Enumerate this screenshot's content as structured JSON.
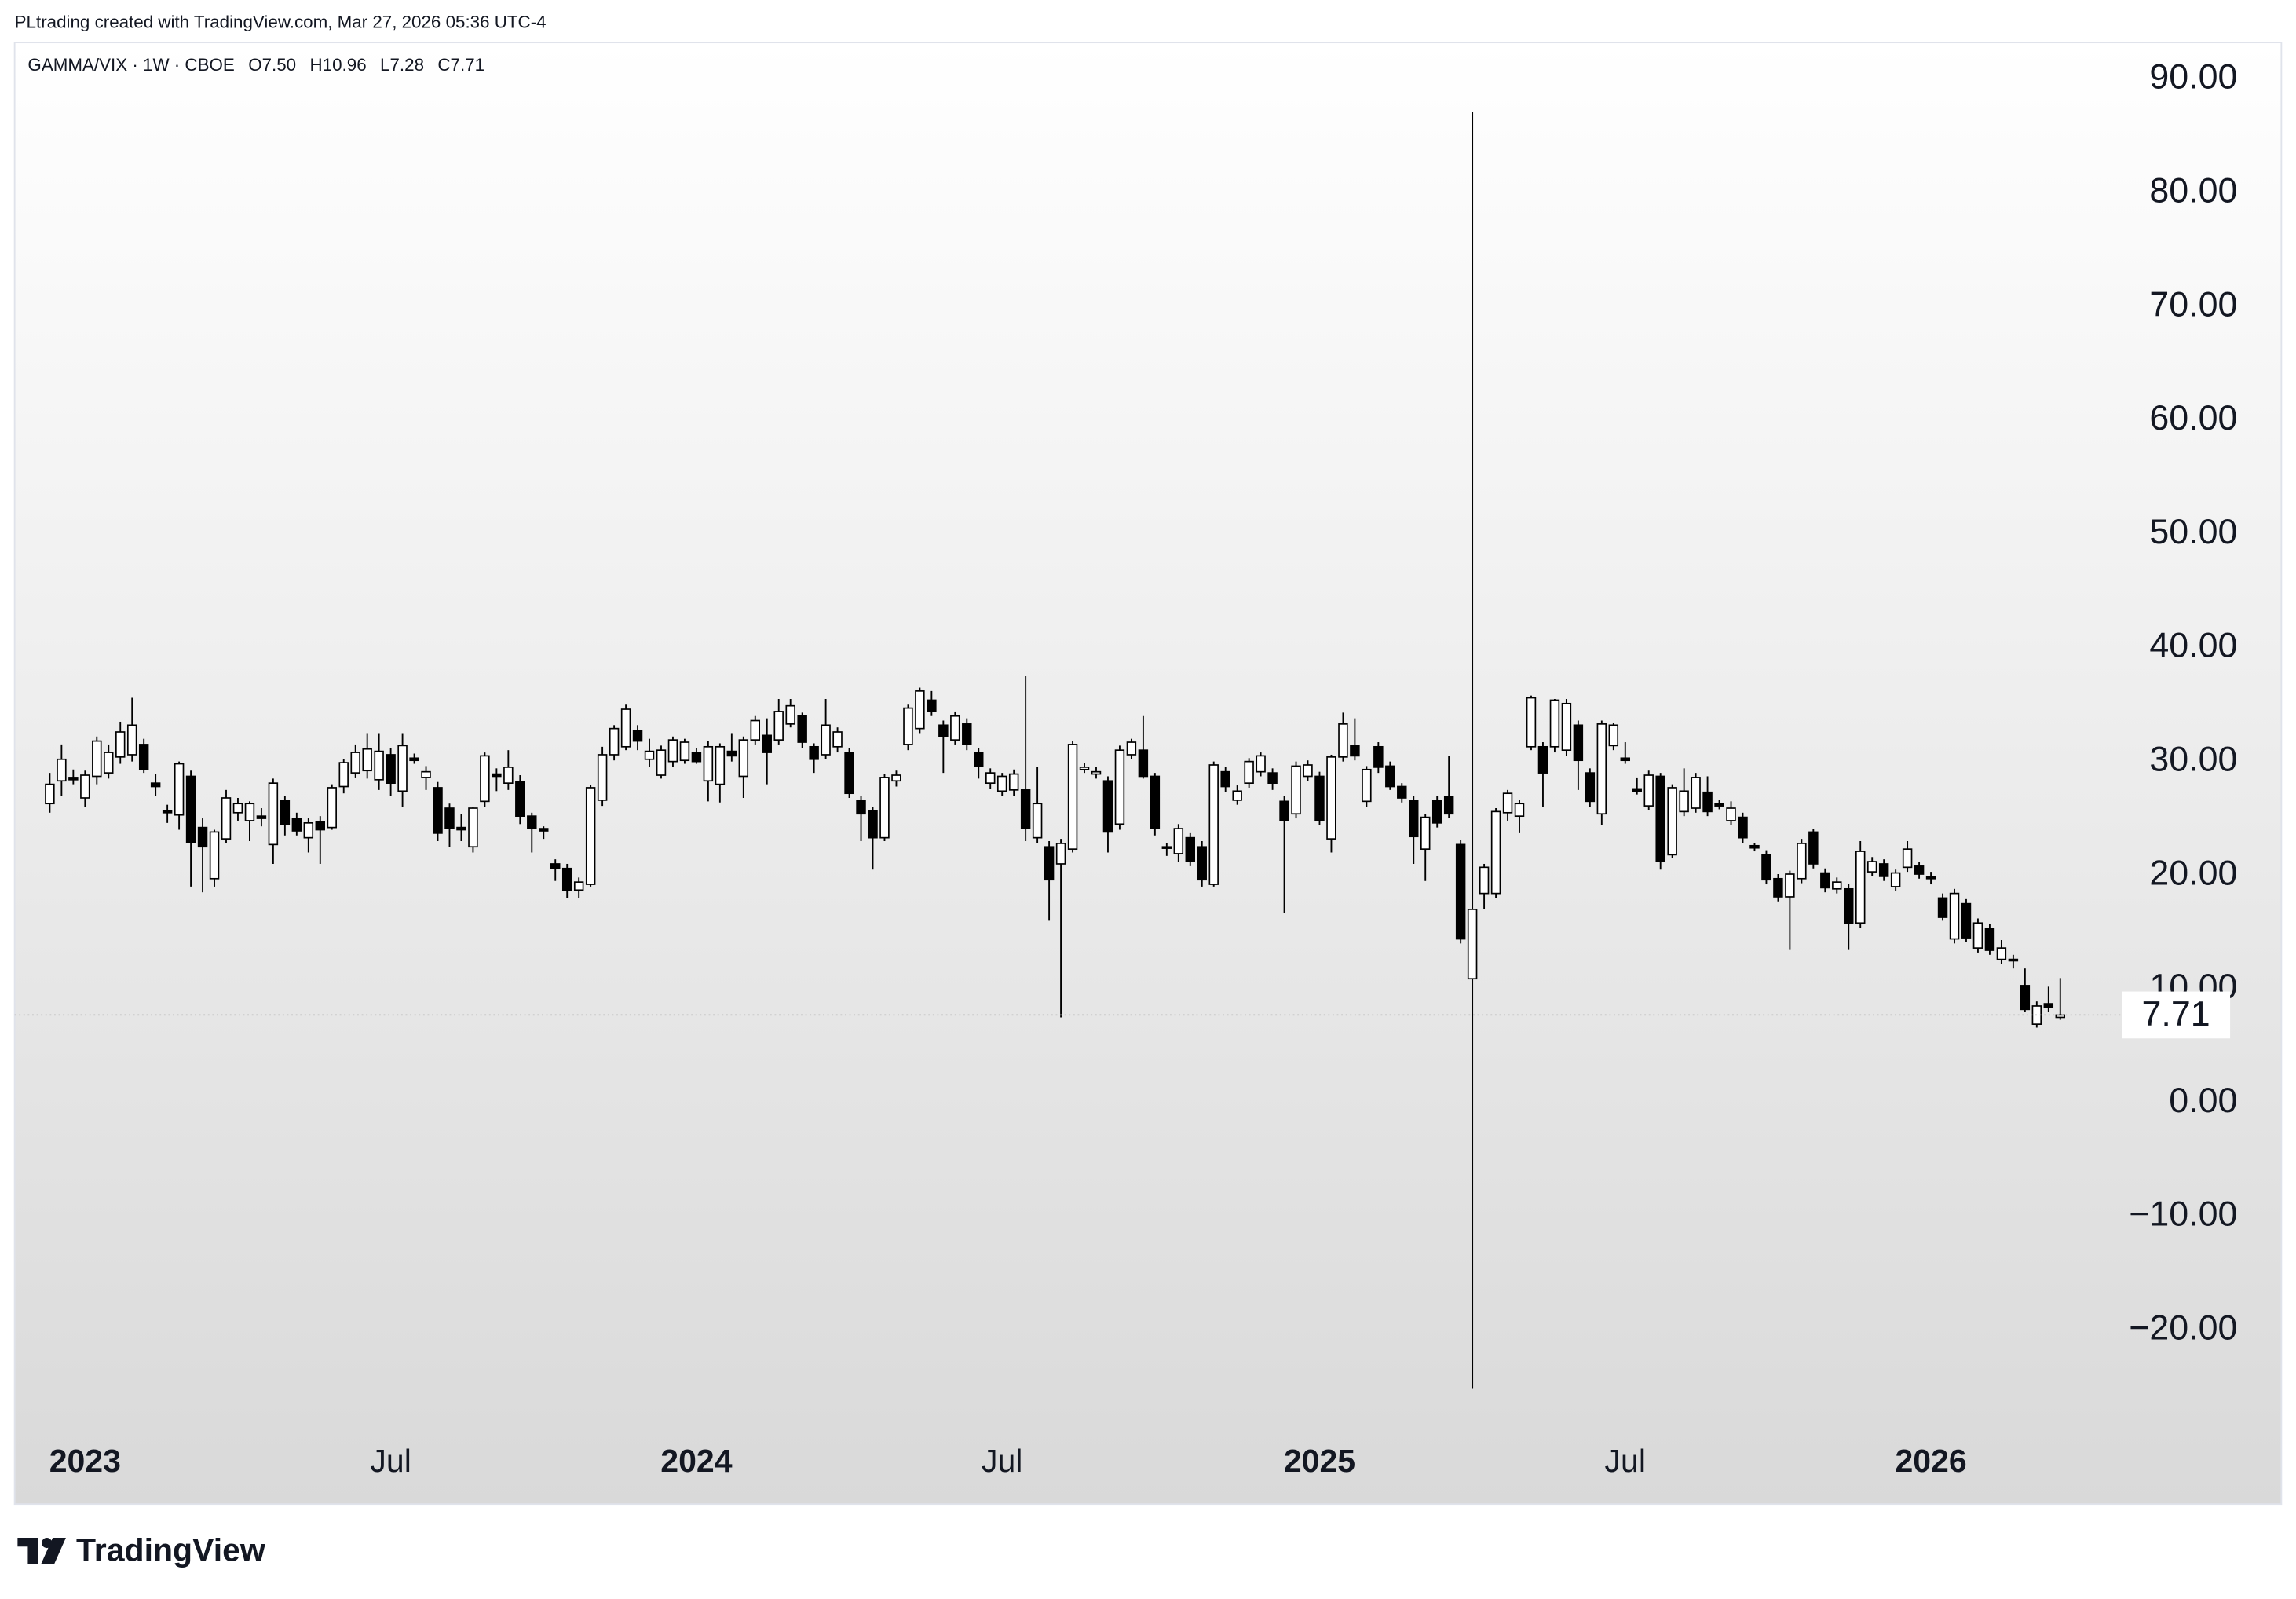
{
  "attribution": "PLtrading created with TradingView.com, Mar 27, 2026 05:36 UTC-4",
  "footer": {
    "brand": "TradingView"
  },
  "chart_data": {
    "type": "candlestick",
    "legend": {
      "symbol": "GAMMA/VIX · 1W · CBOE",
      "ohlc": [
        "O7.50",
        "H10.96",
        "L7.28",
        "C7.71"
      ]
    },
    "up_color": "#ffffff",
    "down_color": "#000000",
    "wick_color": "#000000",
    "categories": [
      null,
      null,
      null,
      null,
      null,
      null,
      null,
      null,
      null,
      null,
      null,
      null,
      null,
      null,
      null,
      null,
      null,
      null,
      null,
      null,
      null,
      null,
      null,
      null,
      null,
      null,
      null,
      null,
      null,
      null,
      null,
      null,
      null,
      null,
      null,
      null,
      null,
      null,
      null,
      null,
      null,
      null,
      null,
      null,
      null,
      null,
      null,
      null,
      null,
      null,
      null,
      null,
      null,
      null,
      null,
      null,
      null,
      null,
      null,
      null,
      null,
      null,
      null,
      null,
      null,
      null,
      null,
      null,
      null,
      null,
      null,
      null,
      null,
      null,
      null,
      null,
      null,
      null,
      null,
      null,
      null,
      null,
      null,
      null,
      null,
      null,
      null,
      null,
      null,
      null,
      null,
      null,
      null,
      null,
      null,
      null,
      null,
      null,
      null,
      null,
      null,
      null,
      null,
      null,
      null,
      null,
      null,
      null,
      null,
      null,
      null,
      null,
      null,
      null,
      null,
      null,
      null,
      null,
      null,
      null,
      null,
      null,
      null,
      null,
      null,
      null,
      null,
      null,
      null,
      null,
      null,
      null,
      null,
      null,
      null,
      null,
      null,
      null,
      null,
      null,
      null,
      null,
      null,
      null,
      null,
      null,
      null,
      null,
      null,
      null,
      null,
      null,
      null,
      null,
      null,
      null,
      null,
      null,
      null,
      null,
      null,
      null,
      null,
      null,
      null,
      null,
      null,
      null,
      null,
      null,
      null,
      null
    ],
    "open": [
      26.3,
      28.3,
      28.6,
      26.8,
      28.7,
      29.0,
      30.4,
      30.6,
      31.5,
      28.1,
      25.7,
      25.3,
      28.7,
      24.2,
      19.7,
      23.2,
      25.5,
      24.8,
      25.2,
      22.7,
      26.6,
      25.0,
      23.3,
      24.7,
      24.2,
      27.8,
      29.0,
      29.2,
      28.4,
      30.6,
      27.4,
      30.3,
      28.6,
      27.7,
      25.9,
      24.2,
      22.5,
      26.5,
      28.9,
      28.1,
      28.2,
      25.2,
      24.1,
      21.0,
      20.6,
      18.7,
      19.2,
      26.6,
      30.6,
      31.3,
      32.7,
      30.2,
      28.8,
      30.0,
      30.1,
      30.8,
      28.3,
      28.0,
      30.9,
      28.7,
      31.9,
      32.3,
      31.9,
      33.3,
      34.0,
      31.3,
      30.6,
      31.3,
      30.8,
      26.6,
      25.7,
      23.3,
      28.3,
      31.5,
      32.9,
      35.4,
      33.2,
      31.9,
      33.3,
      30.8,
      28.1,
      27.4,
      27.5,
      27.5,
      23.3,
      22.5,
      21.0,
      22.3,
      29.3,
      28.9,
      28.3,
      24.5,
      30.6,
      31.0,
      28.7,
      22.5,
      21.9,
      23.3,
      22.5,
      19.2,
      29.1,
      26.6,
      28.1,
      29.1,
      29.0,
      26.5,
      25.4,
      28.7,
      28.7,
      23.2,
      30.4,
      31.4,
      26.5,
      31.3,
      29.6,
      27.8,
      26.6,
      22.3,
      26.6,
      26.9,
      22.7,
      10.9,
      18.4,
      18.4,
      25.5,
      25.2,
      31.3,
      31.3,
      31.3,
      31.0,
      33.2,
      29.0,
      25.4,
      31.4,
      30.3,
      27.6,
      26.1,
      28.7,
      21.8,
      25.6,
      25.9,
      27.3,
      26.3,
      24.8,
      25.1,
      22.6,
      21.8,
      19.7,
      18.1,
      19.7,
      23.8,
      20.2,
      18.8,
      18.8,
      15.8,
      20.3,
      21.0,
      19.0,
      20.7,
      20.8,
      19.9,
      18.0,
      14.4,
      17.5,
      13.6,
      15.3,
      12.6,
      12.6,
      10.3,
      6.9,
      8.7,
      7.5
    ],
    "high": [
      29,
      31.5,
      29.3,
      29.2,
      32.2,
      31.5,
      33.5,
      35.6,
      32,
      28.9,
      26.2,
      30,
      29.2,
      25,
      24,
      27.5,
      26.8,
      26.5,
      25.9,
      28.5,
      27,
      25.5,
      25,
      25.2,
      28,
      30.2,
      31.5,
      32.5,
      32.5,
      31.2,
      32.5,
      30.7,
      29.6,
      28.2,
      26.3,
      25.4,
      26,
      30.8,
      29.4,
      31,
      28.8,
      25.5,
      24.3,
      21.4,
      21,
      19.8,
      27.9,
      31.3,
      33.2,
      35,
      33.2,
      32,
      31.4,
      32.2,
      32,
      31.2,
      31.8,
      31.6,
      32.5,
      32.2,
      34,
      33.8,
      35.5,
      35.5,
      34.3,
      31.6,
      35.5,
      33,
      31.2,
      27,
      26,
      28.9,
      29.2,
      35,
      36.5,
      36.2,
      33.6,
      34.4,
      33.8,
      31.2,
      29.4,
      29,
      29.3,
      37.5,
      29.5,
      23,
      23.2,
      31.8,
      29.9,
      29.5,
      28.7,
      31.4,
      32,
      34,
      29,
      22.8,
      24.5,
      23.7,
      23,
      30,
      29.5,
      27.9,
      30.3,
      30.8,
      29.4,
      27,
      30,
      30.1,
      29.1,
      30.6,
      34.3,
      33.8,
      29.6,
      31.7,
      30,
      28.1,
      27,
      25.4,
      27,
      30.5,
      23.1,
      87.1,
      21,
      25.9,
      27.5,
      26.6,
      35.8,
      31.7,
      35.5,
      35.5,
      33.6,
      29.4,
      33.6,
      33.4,
      31.7,
      28.6,
      29.2,
      29,
      28,
      29.4,
      29,
      28.7,
      26.6,
      26.5,
      25.5,
      22.8,
      22.2,
      20.1,
      20.4,
      23.2,
      24.1,
      20.6,
      19.8,
      19.2,
      23,
      21.6,
      21.4,
      20.5,
      23,
      21.2,
      20.3,
      18.4,
      18.8,
      17.9,
      16.2,
      15.7,
      14.3,
      13,
      11.8,
      8.9,
      10.2,
      10.96
    ],
    "low": [
      25.5,
      27,
      28,
      26,
      28,
      28.5,
      29.8,
      30,
      29,
      27,
      24.6,
      24,
      19,
      18.5,
      19,
      22.8,
      24.8,
      23,
      24.3,
      21,
      23.5,
      23.5,
      22,
      21,
      24,
      27.2,
      28.6,
      28.5,
      27.5,
      27,
      26,
      29.8,
      27.5,
      23,
      22.5,
      23,
      22,
      26,
      27.4,
      27.5,
      24.5,
      22,
      23.2,
      19.5,
      18,
      18,
      19,
      26.1,
      30.1,
      31,
      31,
      29.5,
      28.5,
      29.5,
      29.8,
      29.8,
      26.5,
      26.4,
      30,
      26.8,
      31.5,
      28,
      31.5,
      33,
      31.2,
      29,
      30.2,
      30.8,
      26.8,
      23,
      20.5,
      23,
      27.8,
      31,
      32.5,
      34,
      29,
      31.5,
      31,
      28.5,
      27.6,
      27,
      27,
      23,
      22.8,
      16,
      7.5,
      22,
      29,
      28.5,
      22,
      24,
      30.2,
      28.5,
      23.5,
      21.7,
      21.2,
      20.8,
      19,
      19,
      27.3,
      26.2,
      27.7,
      28.7,
      27.5,
      16.7,
      25,
      28.3,
      24.4,
      22,
      30,
      30.1,
      26,
      29,
      27.5,
      26.4,
      21,
      19.5,
      24.2,
      25,
      14,
      -25.1,
      17,
      18,
      24.8,
      23.7,
      31,
      26,
      30.8,
      30.5,
      27.5,
      26,
      24.4,
      31,
      29.8,
      27.1,
      25.7,
      20.5,
      21.5,
      25.2,
      25.5,
      25.2,
      25.8,
      24.4,
      22.8,
      22.1,
      19.2,
      17.7,
      13.5,
      19.3,
      20.6,
      18.5,
      18.4,
      13.5,
      15.4,
      19.9,
      19.5,
      18.6,
      20.3,
      19.7,
      19.2,
      16,
      14,
      14.1,
      13.2,
      13,
      12.2,
      11.8,
      8,
      6.6,
      8,
      7.28
    ],
    "close": [
      28.0,
      30.2,
      28.4,
      28.8,
      31.8,
      30.8,
      32.6,
      33.2,
      29.3,
      27.8,
      25.5,
      29.8,
      22.9,
      22.5,
      23.8,
      26.8,
      26.3,
      26.3,
      25.0,
      28.1,
      24.5,
      23.9,
      24.6,
      24.0,
      27.7,
      29.9,
      30.8,
      31.1,
      30.9,
      28.1,
      31.4,
      30.1,
      29.1,
      23.7,
      24.1,
      24.0,
      25.9,
      30.5,
      28.7,
      29.5,
      25.2,
      24.1,
      23.9,
      20.6,
      18.7,
      19.4,
      27.7,
      30.6,
      32.9,
      34.6,
      31.8,
      30.9,
      31.0,
      31.9,
      31.7,
      30.0,
      31.3,
      31.3,
      30.5,
      31.9,
      33.6,
      30.8,
      34.4,
      34.9,
      31.7,
      30.2,
      33.2,
      32.6,
      27.2,
      25.4,
      23.3,
      28.6,
      28.8,
      34.7,
      36.2,
      34.4,
      32.2,
      34.0,
      31.5,
      29.6,
      29.0,
      28.7,
      28.9,
      24.1,
      26.3,
      19.6,
      22.8,
      31.5,
      29.5,
      29.1,
      23.8,
      31.0,
      31.7,
      28.7,
      24.1,
      22.4,
      24.1,
      21.2,
      19.6,
      29.7,
      27.8,
      27.4,
      30.0,
      30.5,
      28.1,
      24.8,
      29.6,
      29.7,
      24.8,
      30.4,
      33.3,
      30.5,
      29.3,
      29.5,
      27.8,
      26.8,
      23.4,
      25.1,
      24.6,
      25.4,
      14.4,
      17.0,
      20.7,
      25.6,
      27.2,
      26.3,
      35.6,
      29.0,
      35.4,
      35.1,
      30.1,
      26.5,
      33.3,
      33.2,
      30.1,
      27.4,
      28.8,
      21.2,
      27.7,
      27.4,
      28.6,
      25.6,
      26.1,
      25.9,
      23.3,
      22.4,
      19.6,
      18.1,
      20.1,
      22.8,
      21.0,
      18.9,
      19.4,
      15.8,
      22.1,
      21.2,
      19.9,
      20.2,
      22.3,
      20.1,
      19.7,
      16.3,
      18.4,
      14.5,
      15.8,
      13.4,
      13.6,
      12.5,
      8.2,
      8.5,
      8.4,
      7.71
    ],
    "xticks": [
      {
        "value": 3,
        "label": "2023"
      },
      {
        "value": 29,
        "label": "Jul"
      },
      {
        "value": 55,
        "label": "2024"
      },
      {
        "value": 81,
        "label": "Jul"
      },
      {
        "value": 108,
        "label": "2025"
      },
      {
        "value": 134,
        "label": "Jul"
      },
      {
        "value": 160,
        "label": "2026"
      }
    ],
    "ylim": [
      -28.6,
      93.1
    ],
    "yticks": [
      {
        "value": 90,
        "label": "90.00"
      },
      {
        "value": 80,
        "label": "80.00"
      },
      {
        "value": 70,
        "label": "70.00"
      },
      {
        "value": 60,
        "label": "60.00"
      },
      {
        "value": 50,
        "label": "50.00"
      },
      {
        "value": 40,
        "label": "40.00"
      },
      {
        "value": 30,
        "label": "30.00"
      },
      {
        "value": 20,
        "label": "20.00"
      },
      {
        "value": 10,
        "label": "10.00"
      },
      {
        "value": 0,
        "label": "0.00"
      },
      {
        "value": -10,
        "label": "−10.00"
      },
      {
        "value": -20,
        "label": "−20.00"
      }
    ],
    "grid": false
  }
}
